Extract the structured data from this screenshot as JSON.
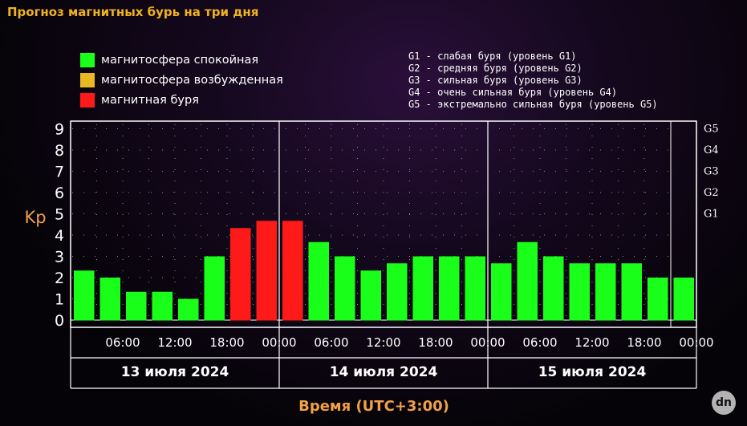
{
  "title": "Прогноз магнитных бурь на три дня",
  "legend": [
    {
      "label": "магнитосфера спокойная",
      "color": "#19ff19"
    },
    {
      "label": "магнитосфера возбужденная",
      "color": "#e8b822"
    },
    {
      "label": "магнитная буря",
      "color": "#ff1a1a"
    }
  ],
  "g_legend": [
    "G1 - слабая буря (уровень G1)",
    "G2 - средняя буря (уровень G2)",
    "G3 - сильная буря (уровень G3)",
    "G4 - очень сильная буря (уровень G4)",
    "G5 - экстремально сильная буря (уровень G5)"
  ],
  "watermark": "dn",
  "chart_data": {
    "type": "bar",
    "ylabel": "Kp",
    "xlabel": "Время (UTC+3:00)",
    "ylim": [
      0,
      9.3
    ],
    "yticks": [
      "0",
      "1",
      "2",
      "3",
      "4",
      "5",
      "6",
      "7",
      "8",
      "9"
    ],
    "g_levels": [
      {
        "label": "G1",
        "value": 5
      },
      {
        "label": "G2",
        "value": 6
      },
      {
        "label": "G3",
        "value": 7
      },
      {
        "label": "G4",
        "value": 8
      },
      {
        "label": "G5",
        "value": 9
      }
    ],
    "days": [
      "13 июля 2024",
      "14 июля 2024",
      "15 июля 2024"
    ],
    "time_ticks": [
      "06:00",
      "12:00",
      "18:00",
      "00:00",
      "06:00",
      "12:00",
      "18:00",
      "00:00",
      "06:00",
      "12:00",
      "18:00",
      "00:00"
    ],
    "values": [
      2.33,
      2.0,
      1.33,
      1.33,
      1.0,
      3.0,
      4.33,
      4.67,
      4.67,
      3.67,
      3.0,
      2.33,
      2.67,
      3.0,
      3.0,
      3.0,
      2.67,
      3.67,
      3.0,
      2.67,
      2.67,
      2.67,
      2.0,
      2.0
    ],
    "colors": {
      "quiet": "#19ff19",
      "storm": "#ff1a1a"
    },
    "grid": true
  }
}
